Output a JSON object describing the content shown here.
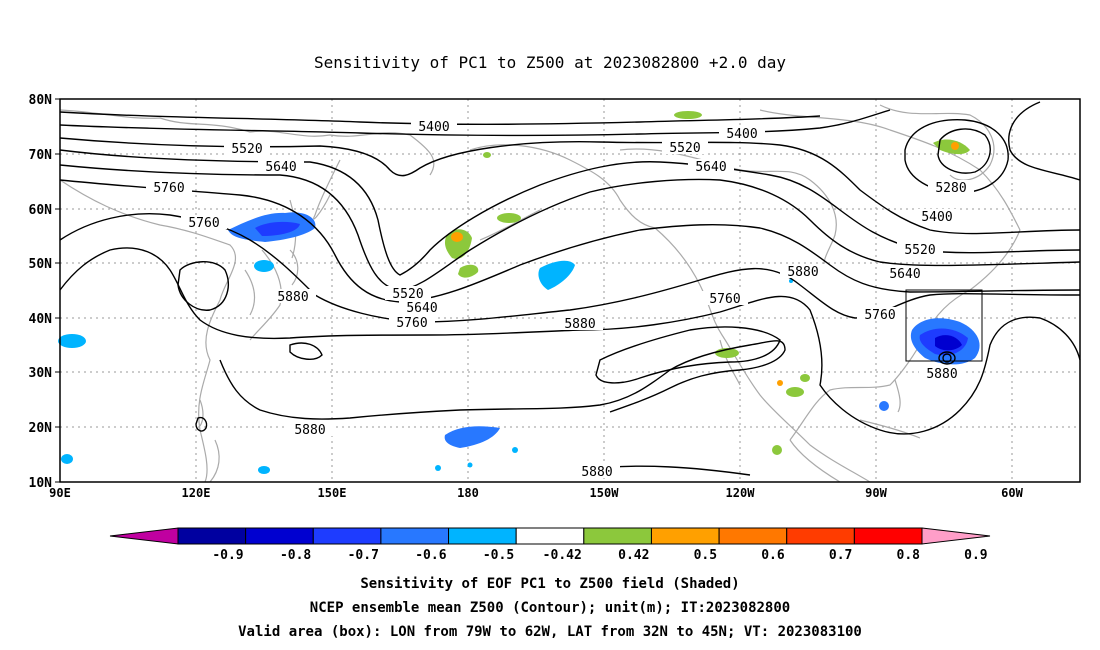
{
  "title": "Sensitivity of PC1 to Z500 at 2023082800 +2.0 day",
  "axes": {
    "lat_labels": [
      "80N",
      "70N",
      "60N",
      "50N",
      "40N",
      "30N",
      "20N",
      "10N"
    ],
    "lon_labels": [
      "90E",
      "120E",
      "150E",
      "180",
      "150W",
      "120W",
      "90W",
      "60W"
    ]
  },
  "contour_labels": [
    "5400",
    "5400",
    "5520",
    "5520",
    "5640",
    "5640",
    "5760",
    "5760",
    "5280",
    "5400",
    "5520",
    "5640",
    "5880",
    "5520",
    "5640",
    "5760",
    "5880",
    "5760",
    "5760",
    "5880",
    "5880",
    "5880",
    "5880"
  ],
  "colorbar": {
    "labels": [
      "-0.9",
      "-0.8",
      "-0.7",
      "-0.6",
      "-0.5",
      "-0.42",
      "0.42",
      "0.5",
      "0.6",
      "0.7",
      "0.8",
      "0.9"
    ],
    "colors": [
      "#c000a0",
      "#0000a0",
      "#0000d0",
      "#1e3cff",
      "#2878ff",
      "#00b4ff",
      "#ffffff",
      "#8cc83c",
      "#ffa000",
      "#ff7800",
      "#ff3c00",
      "#ff0000",
      "#ff9ec8"
    ]
  },
  "caption": {
    "line1": "Sensitivity of EOF PC1 to Z500 field (Shaded)",
    "line2": "NCEP ensemble mean Z500 (Contour); unit(m); IT:2023082800",
    "line3": "Valid area (box): LON from 79W to 62W, LAT from 32N to 45N; VT: 2023083100"
  }
}
